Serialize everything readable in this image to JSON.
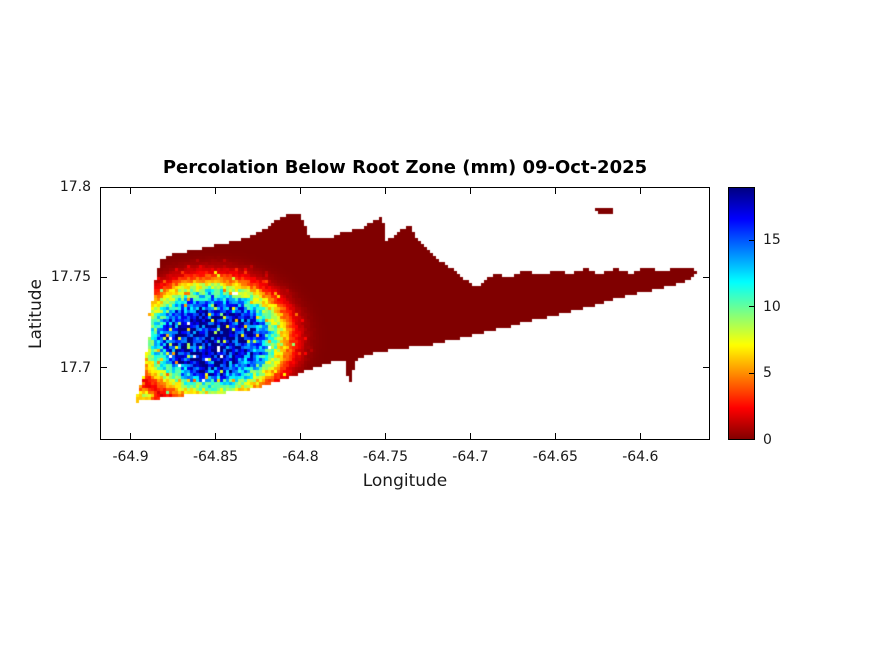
{
  "chart_data": {
    "type": "heatmap",
    "title": "Percolation Below Root Zone (mm) 09-Oct-2025",
    "date": "09-Oct-2025",
    "units": "mm",
    "xlabel": "Longitude",
    "ylabel": "Latitude",
    "xlim": [
      -64.918,
      -64.559
    ],
    "ylim": [
      17.66,
      17.8
    ],
    "grid": false,
    "xticks": [
      -64.9,
      -64.85,
      -64.8,
      -64.75,
      -64.7,
      -64.65,
      -64.6
    ],
    "xtick_labels": [
      "-64.9",
      "-64.85",
      "-64.8",
      "-64.75",
      "-64.7",
      "-64.65",
      "-64.6"
    ],
    "yticks": [
      17.7,
      17.75,
      17.8
    ],
    "ytick_labels": [
      "17.7",
      "17.75",
      "17.8"
    ],
    "colorbar": {
      "min": 0,
      "max": 19,
      "ticks": [
        0,
        5,
        10,
        15
      ],
      "tick_labels": [
        "0",
        "5",
        "10",
        "15"
      ],
      "colormap": "jet_reversed",
      "zero_color": "#800000",
      "peak_color": "#00008f",
      "position": "right"
    },
    "sea_color": "#ffffff",
    "cell_size_px": 3,
    "island_outline": [
      [
        -64.897,
        17.681
      ],
      [
        -64.895,
        17.688
      ],
      [
        -64.892,
        17.697
      ],
      [
        -64.891,
        17.705
      ],
      [
        -64.89,
        17.713
      ],
      [
        -64.888,
        17.721
      ],
      [
        -64.889,
        17.729
      ],
      [
        -64.887,
        17.738
      ],
      [
        -64.886,
        17.746
      ],
      [
        -64.884,
        17.754
      ],
      [
        -64.882,
        17.76
      ],
      [
        -64.874,
        17.763
      ],
      [
        -64.862,
        17.765
      ],
      [
        -64.85,
        17.768
      ],
      [
        -64.838,
        17.77
      ],
      [
        -64.829,
        17.773
      ],
      [
        -64.822,
        17.776
      ],
      [
        -64.815,
        17.781
      ],
      [
        -64.807,
        17.785
      ],
      [
        -64.801,
        17.786
      ],
      [
        -64.798,
        17.78
      ],
      [
        -64.795,
        17.773
      ],
      [
        -64.789,
        17.771
      ],
      [
        -64.782,
        17.772
      ],
      [
        -64.774,
        17.775
      ],
      [
        -64.764,
        17.777
      ],
      [
        -64.757,
        17.781
      ],
      [
        -64.752,
        17.783
      ],
      [
        -64.75,
        17.776
      ],
      [
        -64.751,
        17.769
      ],
      [
        -64.746,
        17.772
      ],
      [
        -64.741,
        17.776
      ],
      [
        -64.736,
        17.779
      ],
      [
        -64.732,
        17.772
      ],
      [
        -64.726,
        17.766
      ],
      [
        -64.719,
        17.76
      ],
      [
        -64.711,
        17.755
      ],
      [
        -64.703,
        17.749
      ],
      [
        -64.697,
        17.744
      ],
      [
        -64.691,
        17.749
      ],
      [
        -64.685,
        17.752
      ],
      [
        -64.676,
        17.75
      ],
      [
        -64.668,
        17.754
      ],
      [
        -64.659,
        17.751
      ],
      [
        -64.65,
        17.754
      ],
      [
        -64.641,
        17.752
      ],
      [
        -64.632,
        17.755
      ],
      [
        -64.624,
        17.752
      ],
      [
        -64.615,
        17.755
      ],
      [
        -64.606,
        17.752
      ],
      [
        -64.597,
        17.756
      ],
      [
        -64.588,
        17.753
      ],
      [
        -64.579,
        17.755
      ],
      [
        -64.571,
        17.756
      ],
      [
        -64.566,
        17.753
      ],
      [
        -64.571,
        17.749
      ],
      [
        -64.579,
        17.746
      ],
      [
        -64.588,
        17.744
      ],
      [
        -64.597,
        17.742
      ],
      [
        -64.606,
        17.74
      ],
      [
        -64.615,
        17.738
      ],
      [
        -64.624,
        17.735
      ],
      [
        -64.632,
        17.733
      ],
      [
        -64.641,
        17.731
      ],
      [
        -64.65,
        17.729
      ],
      [
        -64.659,
        17.727
      ],
      [
        -64.668,
        17.725
      ],
      [
        -64.676,
        17.723
      ],
      [
        -64.685,
        17.721
      ],
      [
        -64.694,
        17.719
      ],
      [
        -64.703,
        17.717
      ],
      [
        -64.712,
        17.715
      ],
      [
        -64.721,
        17.713
      ],
      [
        -64.729,
        17.712
      ],
      [
        -64.738,
        17.711
      ],
      [
        -64.747,
        17.71
      ],
      [
        -64.756,
        17.708
      ],
      [
        -64.764,
        17.706
      ],
      [
        -64.768,
        17.703
      ],
      [
        -64.769,
        17.697
      ],
      [
        -64.771,
        17.691
      ],
      [
        -64.773,
        17.697
      ],
      [
        -64.774,
        17.703
      ],
      [
        -64.778,
        17.704
      ],
      [
        -64.785,
        17.702
      ],
      [
        -64.794,
        17.699
      ],
      [
        -64.803,
        17.696
      ],
      [
        -64.812,
        17.693
      ],
      [
        -64.821,
        17.69
      ],
      [
        -64.829,
        17.688
      ],
      [
        -64.838,
        17.687
      ],
      [
        -64.847,
        17.686
      ],
      [
        -64.856,
        17.686
      ],
      [
        -64.865,
        17.685
      ],
      [
        -64.874,
        17.684
      ],
      [
        -64.882,
        17.683
      ],
      [
        -64.891,
        17.682
      ]
    ],
    "offshore_islet": {
      "center": [
        -64.621,
        17.787
      ],
      "rx": 0.006,
      "ry": 0.0016,
      "value_mm": 0
    },
    "percolation_field": {
      "description": "High percolation zone over western St. Croix, decaying outward; remainder of island near 0 mm",
      "center": [
        -64.852,
        17.716
      ],
      "sigma_lon": 0.042,
      "sigma_lat": 0.031,
      "peak_mm": 18,
      "falloff_exponent": 4,
      "background_mm": 0
    },
    "southwest_tip_patch": {
      "center": [
        -64.893,
        17.684
      ],
      "sigma_lon": 0.009,
      "sigma_lat": 0.005,
      "peak_mm": 8
    }
  }
}
